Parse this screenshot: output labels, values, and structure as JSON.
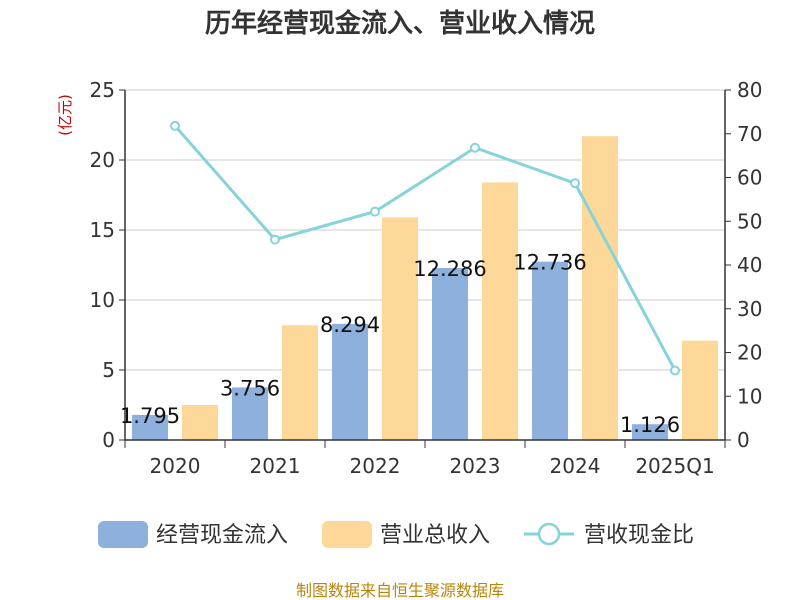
{
  "chart_data": {
    "type": "bar",
    "title": "历年经营现金流入、营业收入情况",
    "categories": [
      "2020",
      "2021",
      "2022",
      "2023",
      "2024",
      "2025Q1"
    ],
    "left_axis": {
      "unit": "(亿元)",
      "ylim": [
        0,
        25
      ],
      "ticks": [
        "0",
        "5",
        "10",
        "15",
        "20",
        "25"
      ]
    },
    "right_axis": {
      "unit": "%",
      "ylim": [
        0,
        80
      ],
      "ticks": [
        "0",
        "10",
        "20",
        "30",
        "40",
        "50",
        "60",
        "70",
        "80"
      ]
    },
    "series": [
      {
        "name": "经营现金流入",
        "type": "bar",
        "axis": "left",
        "color": "#8eb0dd",
        "values": [
          1.795,
          3.756,
          8.294,
          12.286,
          12.736,
          1.126
        ],
        "labels": [
          "1.795",
          "3.756",
          "8.294",
          "12.286",
          "12.736",
          "1.126"
        ]
      },
      {
        "name": "营业总收入",
        "type": "bar",
        "axis": "left",
        "color": "#fdd898",
        "values": [
          2.5,
          8.2,
          15.9,
          18.4,
          21.7,
          7.1
        ]
      },
      {
        "name": "营收现金比",
        "type": "line",
        "axis": "right",
        "color": "#86d3d9",
        "values": [
          71.8,
          45.8,
          52.2,
          66.8,
          58.7,
          15.9
        ]
      }
    ],
    "grid": true,
    "legend": "bottom"
  },
  "footer": {
    "source": "制图数据来自恒生聚源数据库"
  }
}
